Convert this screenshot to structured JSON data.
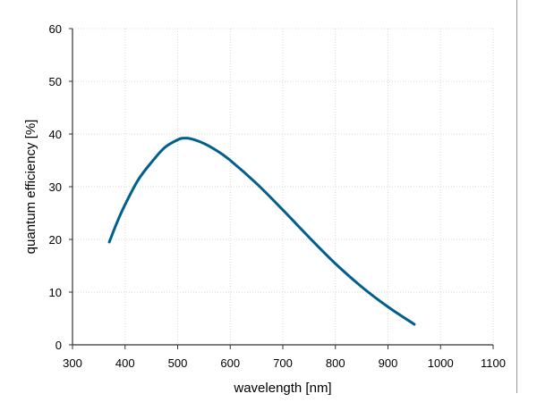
{
  "chart_data": {
    "type": "line",
    "title": "",
    "xlabel": "wavelength [nm]",
    "ylabel": "quantum efficiency [%]",
    "xlim": [
      300,
      1100
    ],
    "ylim": [
      0,
      60
    ],
    "xticks": [
      300,
      400,
      500,
      600,
      700,
      800,
      900,
      1000,
      1100
    ],
    "yticks": [
      0,
      10,
      20,
      30,
      40,
      50,
      60
    ],
    "grid": true,
    "series": [
      {
        "name": "quantum efficiency",
        "color": "#005f8f",
        "x": [
          370,
          385,
          400,
          425,
          450,
          475,
          500,
          510,
          525,
          550,
          575,
          600,
          650,
          700,
          750,
          800,
          850,
          900,
          950
        ],
        "y": [
          19.5,
          23.3,
          26.6,
          31.3,
          34.6,
          37.4,
          38.9,
          39.2,
          39.1,
          38.2,
          36.8,
          35.0,
          30.6,
          25.6,
          20.4,
          15.4,
          11.0,
          7.2,
          3.9
        ]
      }
    ]
  }
}
